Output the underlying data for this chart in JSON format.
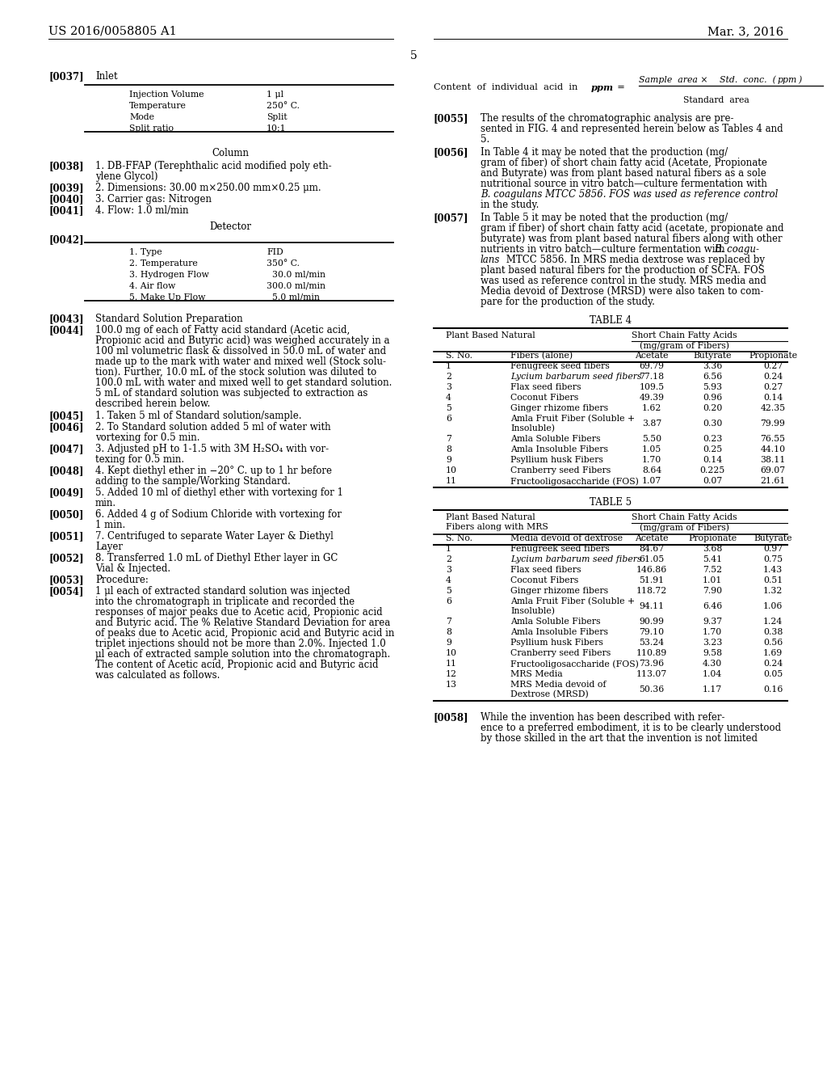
{
  "bg_color": "#ffffff",
  "header_left": "US 2016/0058805 A1",
  "header_right": "Mar. 3, 2016",
  "page_number": "5",
  "table4_rows": [
    [
      1,
      "Fenugreek seed fibers",
      "69.79",
      "3.36",
      "0.27"
    ],
    [
      2,
      "Lycium barbarum seed fibers",
      "77.18",
      "6.56",
      "0.24"
    ],
    [
      3,
      "Flax seed fibers",
      "109.5",
      "5.93",
      "0.27"
    ],
    [
      4,
      "Coconut Fibers",
      "49.39",
      "0.96",
      "0.14"
    ],
    [
      5,
      "Ginger rhizome fibers",
      "1.62",
      "0.20",
      "42.35"
    ],
    [
      6,
      "Amla Fruit Fiber (Soluble +\nInsoluble)",
      "3.87",
      "0.30",
      "79.99"
    ],
    [
      7,
      "Amla Soluble Fibers",
      "5.50",
      "0.23",
      "76.55"
    ],
    [
      8,
      "Amla Insoluble Fibers",
      "1.05",
      "0.25",
      "44.10"
    ],
    [
      9,
      "Psyllium husk Fibers",
      "1.70",
      "0.14",
      "38.11"
    ],
    [
      10,
      "Cranberry seed Fibers",
      "8.64",
      "0.225",
      "69.07"
    ],
    [
      11,
      "Fructooligosaccharide (FOS)",
      "1.07",
      "0.07",
      "21.61"
    ]
  ],
  "table5_rows": [
    [
      1,
      "Fenugreek seed fibers",
      "84.67",
      "3.68",
      "0.97"
    ],
    [
      2,
      "Lycium barbarum seed fibers",
      "61.05",
      "5.41",
      "0.75"
    ],
    [
      3,
      "Flax seed fibers",
      "146.86",
      "7.52",
      "1.43"
    ],
    [
      4,
      "Coconut Fibers",
      "51.91",
      "1.01",
      "0.51"
    ],
    [
      5,
      "Ginger rhizome fibers",
      "118.72",
      "7.90",
      "1.32"
    ],
    [
      6,
      "Amla Fruit Fiber (Soluble +\nInsoluble)",
      "94.11",
      "6.46",
      "1.06"
    ],
    [
      7,
      "Amla Soluble Fibers",
      "90.99",
      "9.37",
      "1.24"
    ],
    [
      8,
      "Amla Insoluble Fibers",
      "79.10",
      "1.70",
      "0.38"
    ],
    [
      9,
      "Psyllium husk Fibers",
      "53.24",
      "3.23",
      "0.56"
    ],
    [
      10,
      "Cranberry seed Fibers",
      "110.89",
      "9.58",
      "1.69"
    ],
    [
      11,
      "Fructooligosaccharide (FOS)",
      "73.96",
      "4.30",
      "0.24"
    ],
    [
      12,
      "MRS Media",
      "113.07",
      "1.04",
      "0.05"
    ],
    [
      13,
      "MRS Media devoid of\nDextrose (MRSD)",
      "50.36",
      "1.17",
      "0.16"
    ]
  ]
}
